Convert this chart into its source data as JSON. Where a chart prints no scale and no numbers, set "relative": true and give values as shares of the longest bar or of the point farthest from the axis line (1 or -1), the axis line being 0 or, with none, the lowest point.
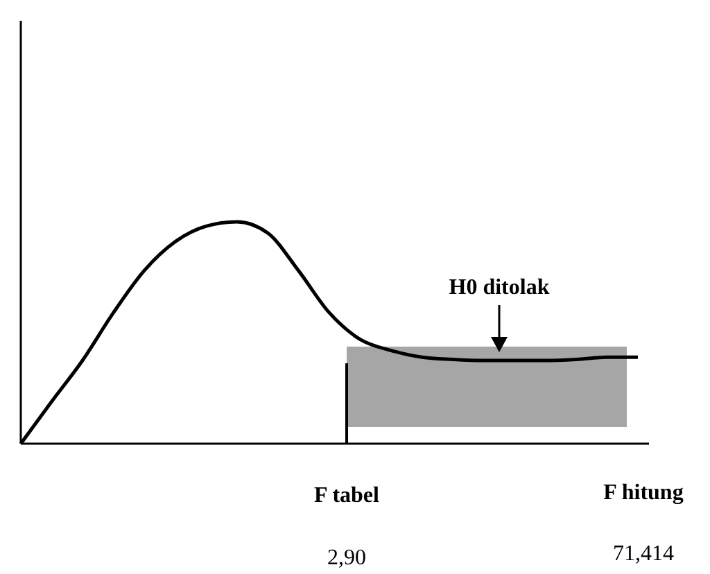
{
  "chart_data": {
    "type": "line",
    "relative": true,
    "categories": [
      null,
      null,
      null,
      null,
      null,
      null,
      null,
      null,
      null,
      null,
      null,
      null,
      null,
      null,
      null,
      null,
      null,
      null,
      null,
      null,
      null
    ],
    "series": [
      {
        "color": "#000000",
        "values": [
          0,
          0.19,
          0.375,
          0.59,
          0.78,
          0.91,
          0.98,
          1,
          0.95,
          0.78,
          0.59,
          0.47,
          0.42,
          0.39,
          0.38,
          0.375,
          0.375,
          0.375,
          0.38,
          0.39,
          0.39
        ]
      }
    ],
    "annotations": [
      "H0 ditolak",
      "F tabel",
      "2,90",
      "F hitung",
      "71,414"
    ],
    "marker": "none",
    "line_style": "solid"
  }
}
